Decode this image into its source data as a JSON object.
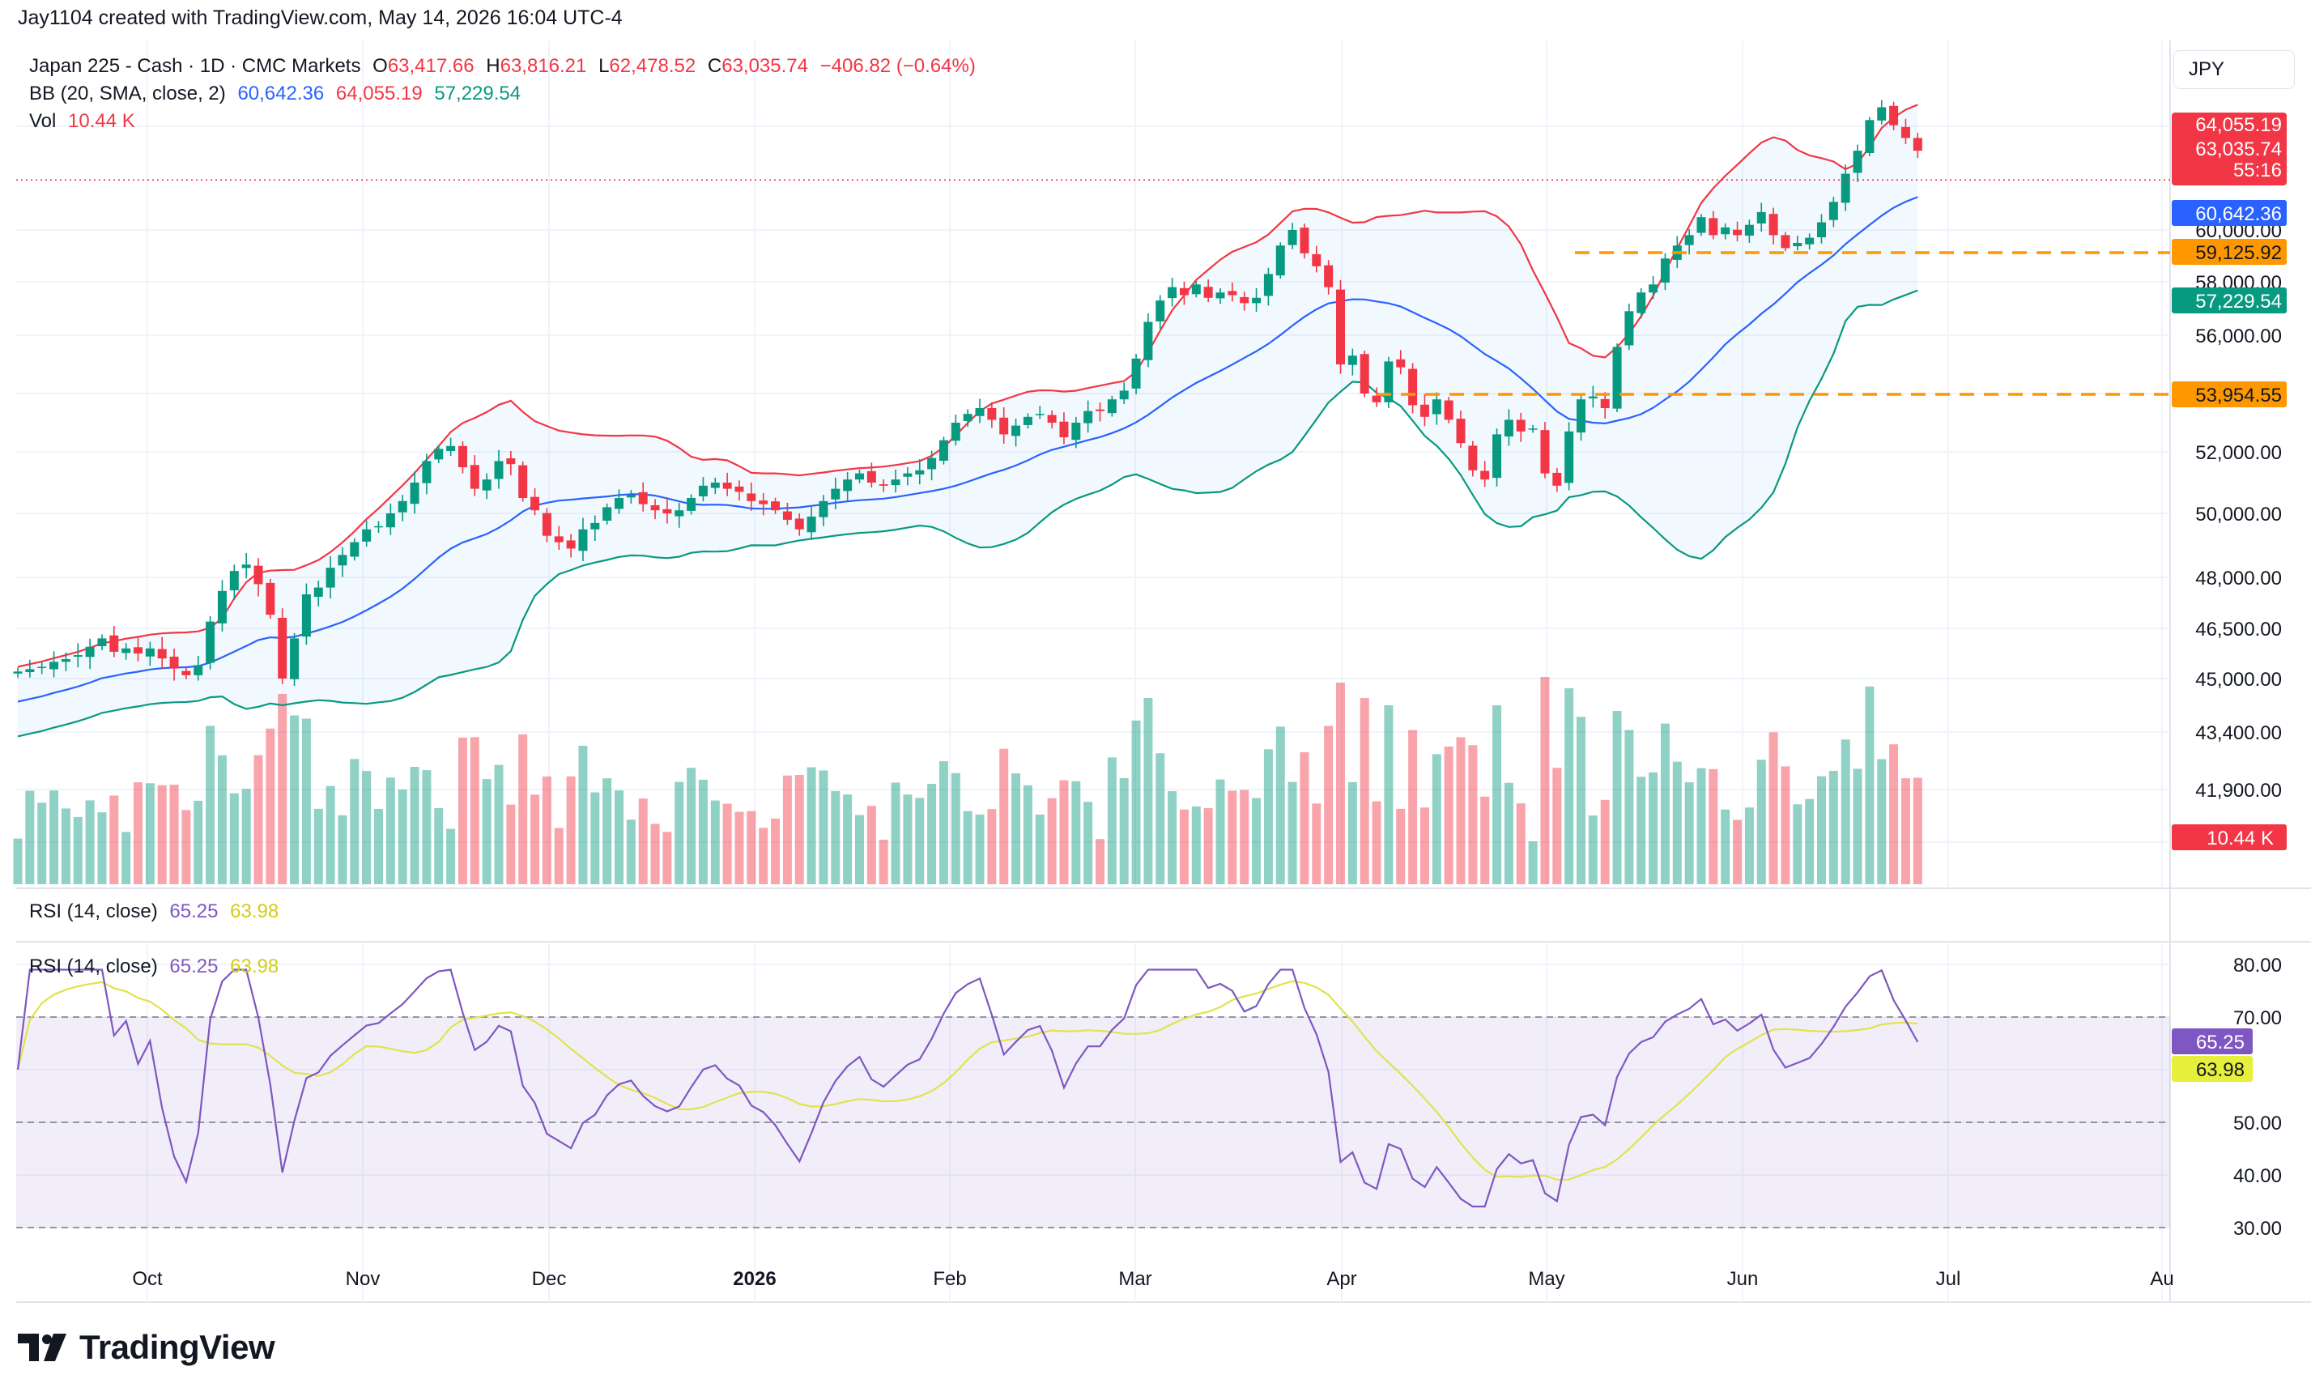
{
  "attribution": "Jay1104 created with TradingView.com, May 14, 2026 16:04 UTC-4",
  "legend": {
    "symbol": "Japan 225 - Cash · 1D · CMC Markets",
    "o_label": "O",
    "o_val": "63,417.66",
    "h_label": "H",
    "h_val": "63,816.21",
    "l_label": "L",
    "l_val": "62,478.52",
    "c_label": "C",
    "c_val": "63,035.74",
    "change": "−406.82 (−0.64%)",
    "bb_label": "BB (20, SMA, close, 2)",
    "bb_basis": "60,642.36",
    "bb_upper": "64,055.19",
    "bb_lower": "57,229.54",
    "vol_label": "Vol",
    "vol_val": "10.44 K",
    "rsi_label": "RSI (14, close)",
    "rsi_val": "65.25",
    "rsi_ma": "63.98"
  },
  "currency": "JPY",
  "brand": "TradingView",
  "price_axis": {
    "ticks": [
      "60,000.00",
      "58,000.00",
      "56,000.00",
      "52,000.00",
      "50,000.00",
      "48,000.00",
      "46,500.00",
      "45,000.00",
      "43,400.00",
      "41,900.00"
    ],
    "tick_values": [
      60000,
      58000,
      56000,
      52000,
      50000,
      48000,
      46500,
      45000,
      43400,
      41900
    ],
    "partial_tick": "00"
  },
  "price_badges": [
    {
      "text": "64,055.19",
      "value": 64055.19,
      "color": "#f23645"
    },
    {
      "text": "63,035.74",
      "value": 63035.74,
      "color": "#f23645"
    },
    {
      "text": "55:16",
      "value": 62500,
      "color": "#f23645"
    },
    {
      "text": "60,642.36",
      "value": 60642.36,
      "color": "#2962ff"
    },
    {
      "text": "59,125.92",
      "value": 59125.92,
      "color": "#ff9800",
      "dark": true
    },
    {
      "text": "57,229.54",
      "value": 57229.54,
      "color": "#089981"
    },
    {
      "text": "53,954.55",
      "value": 53954.55,
      "color": "#ff9800",
      "dark": true
    }
  ],
  "volume_badge": "10.44 K",
  "horizontal_lines": [
    59125.92,
    53954.55
  ],
  "rsi_axis": {
    "ticks": [
      "80.00",
      "70.00",
      "50.00",
      "40.00",
      "30.00"
    ],
    "tick_values": [
      80,
      70,
      50,
      40,
      30
    ],
    "badge_rsi": "65.25",
    "badge_ma": "63.98"
  },
  "time_axis": [
    "Oct",
    "Nov",
    "Dec",
    "2026",
    "Feb",
    "Mar",
    "Apr",
    "May",
    "Jun",
    "Jul",
    "Au"
  ],
  "colors": {
    "up": "#089981",
    "down": "#f23645",
    "basis": "#2962ff",
    "upper": "#f23645",
    "lower": "#089981",
    "rsi": "#7e57c2",
    "rsi_ma": "#e0e34b",
    "orange": "#ff9800"
  },
  "chart_data": {
    "type": "candlestick",
    "start_date": "2025-09-08",
    "end_date": "2026-05-14",
    "closes": [
      45210,
      45280,
      45350,
      45500,
      45580,
      45700,
      45950,
      46200,
      45800,
      45900,
      45750,
      45900,
      45600,
      45300,
      45100,
      45400,
      46700,
      47600,
      48200,
      48400,
      47800,
      46900,
      45000,
      46200,
      47500,
      47700,
      48300,
      48700,
      49100,
      49500,
      49600,
      50000,
      50400,
      51000,
      51700,
      52100,
      52200,
      51500,
      50800,
      51100,
      51700,
      51600,
      50500,
      50100,
      49300,
      49100,
      48900,
      49500,
      49700,
      50200,
      50500,
      50600,
      50300,
      50100,
      50000,
      50100,
      50500,
      50900,
      51000,
      50800,
      50700,
      50400,
      50300,
      50100,
      49800,
      49500,
      49900,
      50400,
      50800,
      51100,
      51300,
      51000,
      50900,
      51100,
      51300,
      51400,
      51800,
      52400,
      53000,
      53300,
      53500,
      53100,
      52600,
      52900,
      53200,
      53300,
      53000,
      52500,
      53000,
      53400,
      53400,
      53800,
      54100,
      55200,
      56500,
      57300,
      57800,
      57500,
      57900,
      57400,
      57600,
      57500,
      57200,
      57400,
      58300,
      59400,
      60000,
      59100,
      58600,
      57800,
      55000,
      55300,
      54000,
      53700,
      55100,
      54900,
      53600,
      53200,
      53800,
      53100,
      52300,
      51400,
      51100,
      52600,
      53100,
      52700,
      52800,
      51300,
      50900,
      52700,
      53800,
      53900,
      53500,
      55600,
      56900,
      57600,
      57900,
      58900,
      59400,
      59800,
      60500,
      59800,
      60100,
      59800,
      60200,
      60700,
      59800,
      59300,
      59500,
      59700,
      60300,
      61100,
      62200,
      63100,
      64300,
      64800,
      64100,
      63600,
      63100
    ],
    "bb": {
      "period": 20,
      "stdev": 2,
      "basis": 60642.36,
      "upper": 64055.19,
      "lower": 57229.54
    },
    "volume_last": "10.44 K",
    "rsi": {
      "period": 14,
      "last": 65.25,
      "ma_last": 63.98,
      "range": [
        30,
        80
      ],
      "bands": [
        30,
        50,
        70
      ]
    }
  }
}
